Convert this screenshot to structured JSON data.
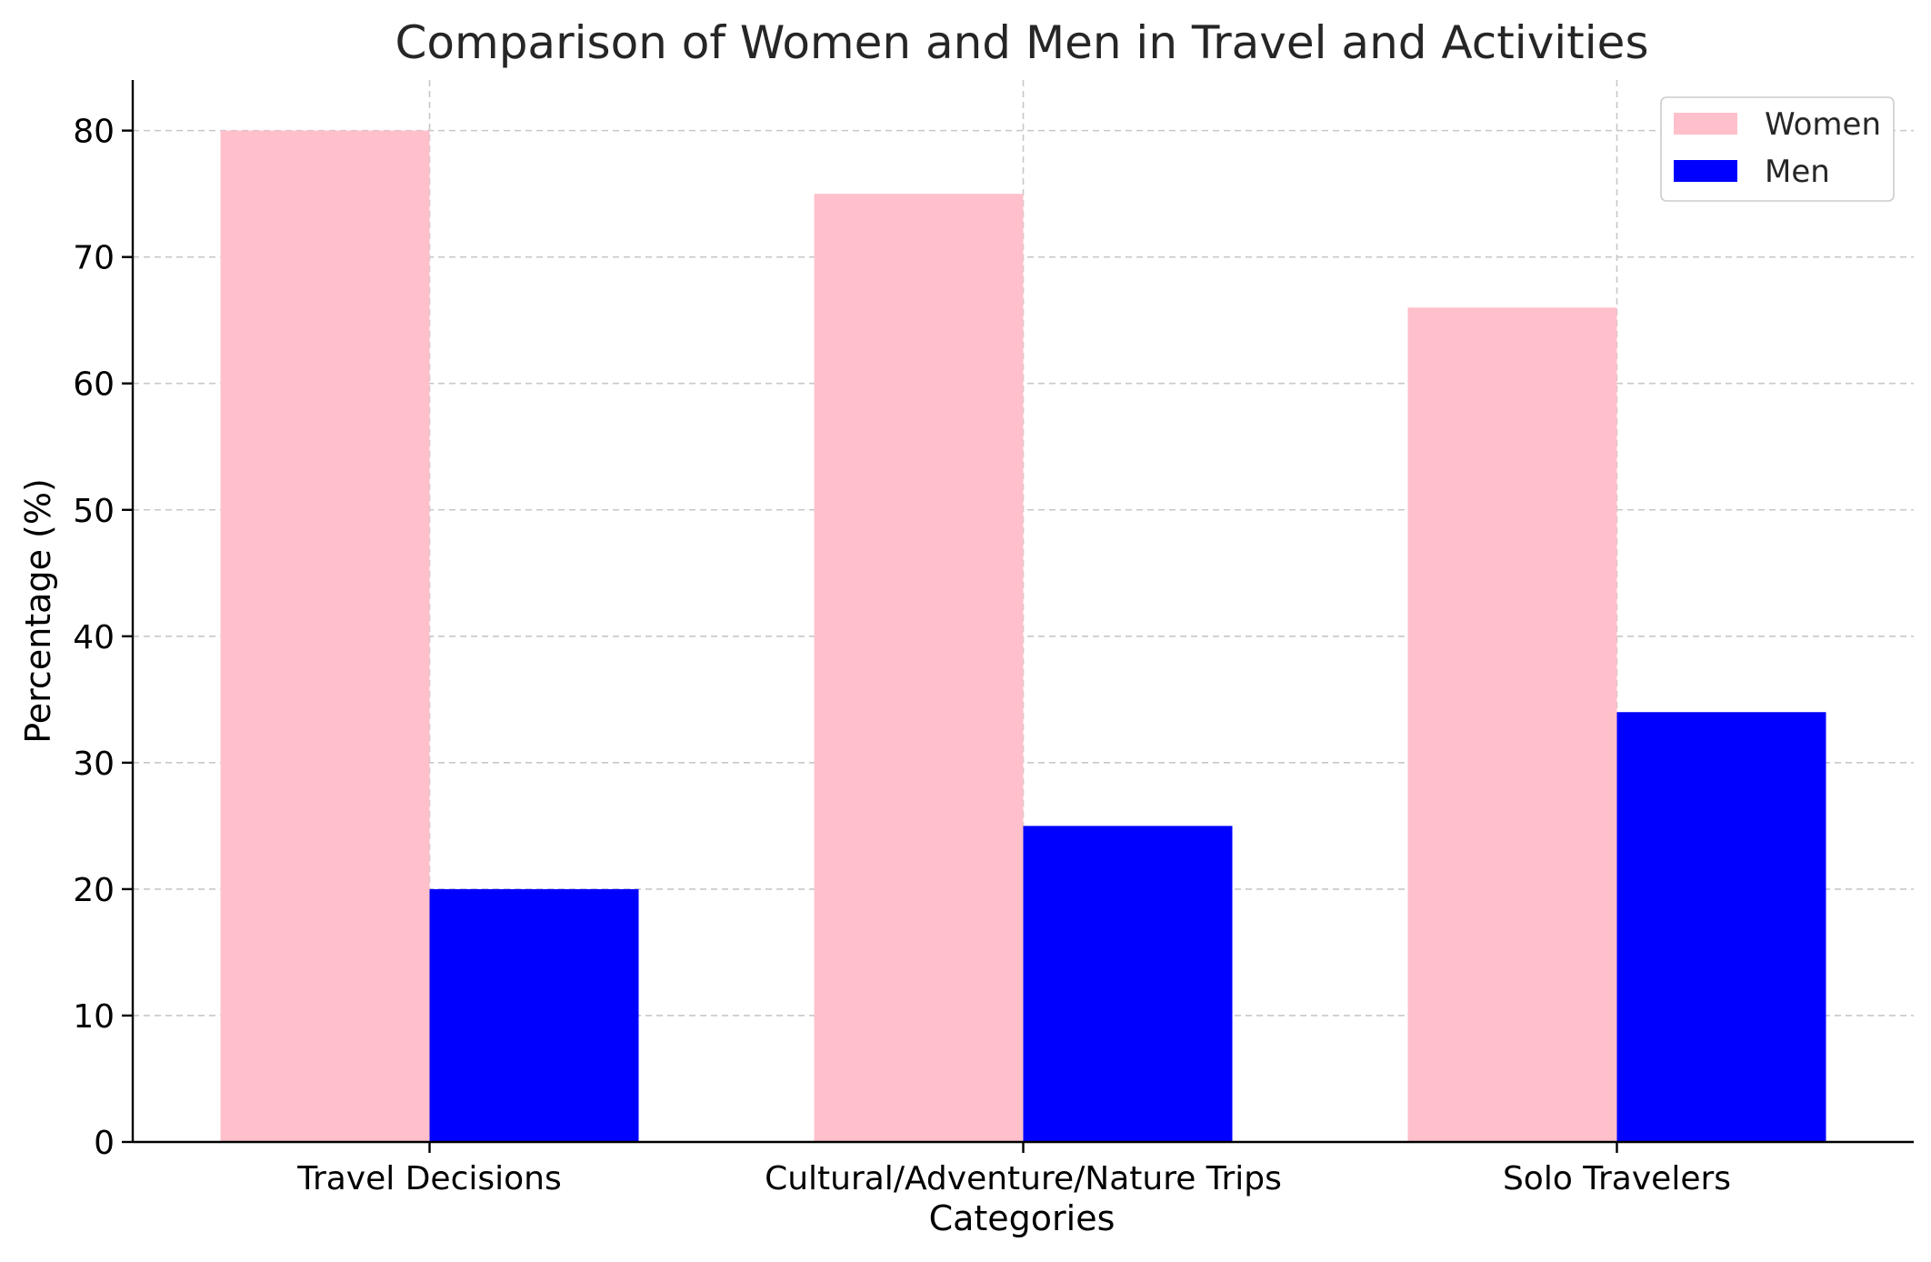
{
  "chart_data": {
    "type": "bar",
    "title": "Comparison of Women and Men in Travel and Activities",
    "xlabel": "Categories",
    "ylabel": "Percentage (%)",
    "categories": [
      "Travel Decisions",
      "Cultural/Adventure/Nature Trips",
      "Solo Travelers"
    ],
    "series": [
      {
        "name": "Women",
        "values": [
          80,
          75,
          66
        ],
        "color": "#ffc0cb"
      },
      {
        "name": "Men",
        "values": [
          20,
          25,
          34
        ],
        "color": "#0000ff"
      }
    ],
    "ylim": [
      0,
      84
    ],
    "yticks": [
      0,
      10,
      20,
      30,
      40,
      50,
      60,
      70,
      80
    ],
    "yticks_labels": [
      "0",
      "10",
      "20",
      "30",
      "40",
      "50",
      "60",
      "70",
      "80"
    ],
    "grid": true,
    "legend_position": "top-right"
  }
}
